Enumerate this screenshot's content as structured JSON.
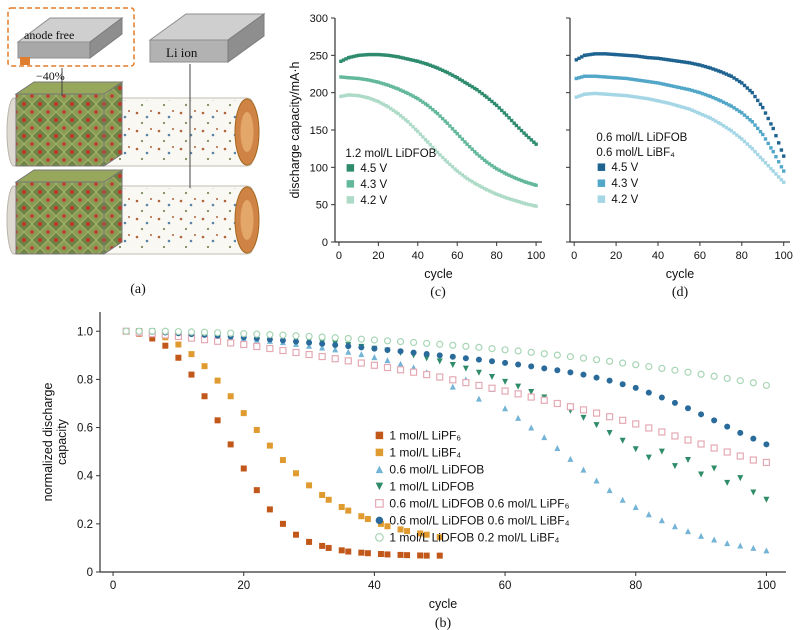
{
  "figure": {
    "panel_a": {
      "label": "(a)",
      "anode_free_label": "anode free",
      "percent_label": "−40%",
      "li_ion_label": "Li ion"
    }
  },
  "chart_data": [
    {
      "id": "c",
      "type": "scatter",
      "panel_label": "(c)",
      "title": "",
      "xlabel": "cycle",
      "ylabel": "discharge capacity/mA·h",
      "xlim": [
        -2,
        103
      ],
      "ylim": [
        0,
        300
      ],
      "grid": false,
      "xticks": [
        0,
        20,
        40,
        60,
        80,
        100
      ],
      "xtick_labels": [
        "0",
        "20",
        "40",
        "60",
        "80",
        "100"
      ],
      "yticks": [
        0,
        50,
        100,
        150,
        200,
        250,
        300
      ],
      "ytick_labels": [
        "0",
        "50",
        "100",
        "150",
        "200",
        "250",
        "300"
      ],
      "legend": {
        "title": "1.2 mol/L LiDFOB",
        "x": 0.05,
        "y": 0.62
      },
      "series": [
        {
          "name": "4.5 V",
          "marker": "square",
          "color": "#2e8b6e",
          "x": [
            1,
            5,
            10,
            15,
            20,
            25,
            30,
            35,
            40,
            45,
            50,
            55,
            60,
            65,
            70,
            75,
            80,
            85,
            90,
            95,
            100
          ],
          "y": [
            242,
            247,
            250,
            251,
            251,
            250,
            248,
            245,
            242,
            238,
            233,
            227,
            220,
            212,
            204,
            194,
            183,
            170,
            156,
            143,
            131
          ]
        },
        {
          "name": "4.3 V",
          "marker": "square",
          "color": "#63b89a",
          "x": [
            1,
            5,
            10,
            15,
            20,
            25,
            30,
            35,
            40,
            45,
            50,
            55,
            60,
            65,
            70,
            75,
            80,
            85,
            90,
            95,
            100
          ],
          "y": [
            221,
            220,
            219,
            217,
            214,
            210,
            205,
            199,
            192,
            183,
            172,
            159,
            145,
            131,
            118,
            107,
            98,
            91,
            85,
            80,
            76
          ]
        },
        {
          "name": "4.2 V",
          "marker": "square",
          "color": "#aedbc8",
          "x": [
            1,
            5,
            10,
            15,
            20,
            25,
            30,
            35,
            40,
            45,
            50,
            55,
            60,
            65,
            70,
            75,
            80,
            85,
            90,
            95,
            100
          ],
          "y": [
            195,
            197,
            196,
            193,
            188,
            181,
            172,
            161,
            148,
            134,
            120,
            107,
            95,
            85,
            77,
            70,
            64,
            59,
            55,
            51,
            48
          ]
        }
      ]
    },
    {
      "id": "d",
      "type": "scatter",
      "panel_label": "(d)",
      "title": "",
      "xlabel": "cycle",
      "ylabel": "",
      "xlim": [
        -2,
        103
      ],
      "ylim": [
        0,
        300
      ],
      "grid": false,
      "xticks": [
        0,
        20,
        40,
        60,
        80,
        100
      ],
      "xtick_labels": [
        "0",
        "20",
        "40",
        "60",
        "80",
        "100"
      ],
      "yticks": [
        0,
        50,
        100,
        150,
        200,
        250,
        300
      ],
      "ytick_labels": null,
      "legend": {
        "title": "0.6 mol/L LiDFOB\n0.6 mol/L LiBF₄",
        "x": 0.12,
        "y": 0.55
      },
      "series": [
        {
          "name": "4.5 V",
          "marker": "square",
          "color": "#1f6391",
          "x": [
            1,
            5,
            10,
            15,
            20,
            25,
            30,
            35,
            40,
            45,
            50,
            55,
            60,
            65,
            70,
            75,
            80,
            85,
            90,
            95,
            100
          ],
          "y": [
            244,
            250,
            252,
            252,
            251,
            250,
            249,
            247,
            246,
            244,
            242,
            240,
            237,
            233,
            228,
            222,
            213,
            200,
            180,
            152,
            115
          ]
        },
        {
          "name": "4.3 V",
          "marker": "square",
          "color": "#52a7c9",
          "x": [
            1,
            5,
            10,
            15,
            20,
            25,
            30,
            35,
            40,
            45,
            50,
            55,
            60,
            65,
            70,
            75,
            80,
            85,
            90,
            95,
            100
          ],
          "y": [
            219,
            222,
            222,
            221,
            220,
            219,
            217,
            215,
            213,
            210,
            207,
            204,
            200,
            195,
            189,
            182,
            173,
            161,
            144,
            121,
            95
          ]
        },
        {
          "name": "4.2 V",
          "marker": "square",
          "color": "#a5d6e6",
          "x": [
            1,
            5,
            10,
            15,
            20,
            25,
            30,
            35,
            40,
            45,
            50,
            55,
            60,
            65,
            70,
            75,
            80,
            85,
            90,
            95,
            100
          ],
          "y": [
            194,
            198,
            199,
            198,
            197,
            196,
            194,
            192,
            189,
            186,
            182,
            178,
            172,
            166,
            158,
            149,
            138,
            125,
            110,
            95,
            80
          ]
        }
      ]
    },
    {
      "id": "b",
      "type": "scatter",
      "panel_label": "(b)",
      "title": "",
      "xlabel": "cycle",
      "ylabel": "normalized discharge\ncapacity",
      "xlim": [
        -2,
        103
      ],
      "ylim": [
        0,
        1.08
      ],
      "grid": false,
      "xticks": [
        0,
        20,
        40,
        60,
        80,
        100
      ],
      "xtick_labels": [
        "0",
        "20",
        "40",
        "60",
        "80",
        "100"
      ],
      "yticks": [
        0,
        0.2,
        0.4,
        0.6,
        0.8,
        1.0
      ],
      "ytick_labels": [
        "0",
        "0.2",
        "0.4",
        "0.6",
        "0.8",
        "1.0"
      ],
      "legend": {
        "title": "",
        "x": 0.4,
        "y": 0.49
      },
      "series": [
        {
          "name": "1 mol/L LiPF₆",
          "marker": "square",
          "color": "#c2571a",
          "x": [
            2,
            4,
            6,
            8,
            10,
            12,
            14,
            16,
            18,
            20,
            22,
            24,
            26,
            28,
            30,
            33,
            36,
            39,
            42,
            45,
            48,
            50
          ],
          "y": [
            1.0,
            0.99,
            0.97,
            0.94,
            0.89,
            0.82,
            0.73,
            0.63,
            0.53,
            0.43,
            0.34,
            0.26,
            0.2,
            0.155,
            0.125,
            0.1,
            0.085,
            0.078,
            0.073,
            0.07,
            0.068,
            0.068
          ]
        },
        {
          "name": "1 mol/L LiBF₄",
          "marker": "square",
          "color": "#e09b30",
          "x": [
            2,
            4,
            6,
            8,
            10,
            12,
            14,
            16,
            18,
            20,
            22,
            24,
            26,
            28,
            30,
            33,
            36,
            39,
            42,
            45,
            48,
            50
          ],
          "y": [
            1.0,
            1.0,
            0.99,
            0.975,
            0.945,
            0.905,
            0.855,
            0.795,
            0.73,
            0.66,
            0.59,
            0.525,
            0.465,
            0.41,
            0.36,
            0.3,
            0.255,
            0.22,
            0.19,
            0.17,
            0.155,
            0.145
          ]
        },
        {
          "name": "0.6 mol/L LiDFOB",
          "marker": "triangle-up",
          "color": "#74b4d6",
          "x": [
            2,
            6,
            10,
            14,
            18,
            22,
            26,
            30,
            34,
            38,
            42,
            46,
            50,
            52,
            54,
            56,
            58,
            60,
            62,
            66,
            70,
            74,
            78,
            82,
            86,
            90,
            94,
            98,
            100
          ],
          "y": [
            1.0,
            1.0,
            0.99,
            0.985,
            0.975,
            0.965,
            0.955,
            0.94,
            0.925,
            0.905,
            0.88,
            0.85,
            0.81,
            0.77,
            0.8,
            0.72,
            0.76,
            0.68,
            0.64,
            0.56,
            0.47,
            0.38,
            0.3,
            0.24,
            0.19,
            0.15,
            0.12,
            0.1,
            0.09
          ]
        },
        {
          "name": "1 mol/L LiDFOB",
          "marker": "triangle-down",
          "color": "#2f8c68",
          "x": [
            2,
            6,
            10,
            14,
            18,
            22,
            26,
            30,
            34,
            38,
            42,
            46,
            50,
            54,
            58,
            62,
            66,
            70,
            74,
            78,
            80,
            82,
            84,
            86,
            88,
            90,
            92,
            94,
            96,
            98,
            100
          ],
          "y": [
            1.0,
            1.0,
            0.995,
            0.99,
            0.985,
            0.98,
            0.97,
            0.96,
            0.95,
            0.935,
            0.92,
            0.9,
            0.875,
            0.845,
            0.81,
            0.77,
            0.725,
            0.67,
            0.61,
            0.545,
            0.51,
            0.475,
            0.5,
            0.44,
            0.465,
            0.405,
            0.43,
            0.37,
            0.39,
            0.33,
            0.3
          ]
        },
        {
          "name": "0.6 mol/L LiDFOB 0.6 mol/L LiPF₆",
          "marker": "square-open",
          "color": "#e4aab4",
          "x": [
            2,
            8,
            14,
            20,
            26,
            32,
            38,
            44,
            50,
            56,
            62,
            68,
            74,
            80,
            86,
            92,
            98,
            100
          ],
          "y": [
            1.0,
            0.985,
            0.965,
            0.945,
            0.92,
            0.895,
            0.868,
            0.84,
            0.81,
            0.775,
            0.74,
            0.7,
            0.66,
            0.615,
            0.565,
            0.515,
            0.465,
            0.455
          ]
        },
        {
          "name": "0.6 mol/L LiDFOB 0.6 mol/L LiBF₄",
          "marker": "circle",
          "color": "#2a6b9c",
          "x": [
            2,
            8,
            14,
            20,
            26,
            32,
            38,
            44,
            50,
            56,
            62,
            68,
            72,
            76,
            80,
            84,
            88,
            92,
            96,
            100
          ],
          "y": [
            1.0,
            0.995,
            0.985,
            0.975,
            0.962,
            0.948,
            0.933,
            0.917,
            0.9,
            0.882,
            0.862,
            0.838,
            0.82,
            0.795,
            0.765,
            0.725,
            0.68,
            0.63,
            0.578,
            0.53
          ]
        },
        {
          "name": "1 mol/L LiDFOB 0.2 mol/L LiBF₄",
          "marker": "circle-open",
          "color": "#a8d5b5",
          "x": [
            2,
            8,
            14,
            20,
            26,
            32,
            38,
            44,
            50,
            56,
            62,
            68,
            74,
            80,
            86,
            92,
            98,
            100
          ],
          "y": [
            1.0,
            1.0,
            0.996,
            0.99,
            0.984,
            0.976,
            0.967,
            0.957,
            0.946,
            0.933,
            0.918,
            0.901,
            0.882,
            0.861,
            0.838,
            0.813,
            0.786,
            0.775
          ]
        }
      ]
    }
  ]
}
